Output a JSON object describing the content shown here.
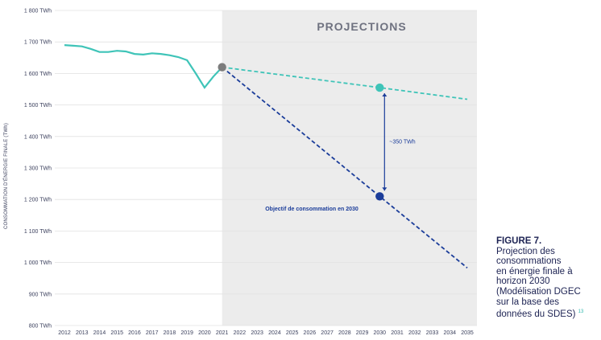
{
  "chart_data": {
    "type": "line",
    "projection_label": "PROJECTIONS",
    "ylabel": "CONSOMMATION D'ÉNERGIE FINALE (TWh)",
    "ylim": [
      800,
      1800
    ],
    "y_ticks": [
      "800 TWh",
      "900 TWh",
      "1 000 TWh",
      "1 100 TWh",
      "1 200 TWh",
      "1 300 TWh",
      "1 400 TWh",
      "1 500 TWh",
      "1 600 TWh",
      "1 700 TWh",
      "1 800 TWh"
    ],
    "y_tick_values": [
      800,
      900,
      1000,
      1100,
      1200,
      1300,
      1400,
      1500,
      1600,
      1700,
      1800
    ],
    "x_ticks": [
      "2012",
      "2013",
      "2014",
      "2015",
      "2016",
      "2017",
      "2018",
      "2019",
      "2020",
      "2021",
      "2022",
      "2023",
      "2024",
      "2025",
      "2026",
      "2027",
      "2028",
      "2029",
      "2030",
      "2031",
      "2032",
      "2033",
      "2034",
      "2035"
    ],
    "xlim": [
      2012,
      2035
    ],
    "projection_start": 2021,
    "grid": true,
    "series": [
      {
        "style": "solid",
        "color": "#3fc4b8",
        "points": [
          [
            2012,
            1690
          ],
          [
            2012.5,
            1688
          ],
          [
            2013,
            1686
          ],
          [
            2013.5,
            1678
          ],
          [
            2014,
            1668
          ],
          [
            2014.5,
            1668
          ],
          [
            2015,
            1672
          ],
          [
            2015.5,
            1670
          ],
          [
            2016,
            1662
          ],
          [
            2016.5,
            1660
          ],
          [
            2017,
            1664
          ],
          [
            2017.5,
            1662
          ],
          [
            2018,
            1658
          ],
          [
            2018.5,
            1652
          ],
          [
            2019,
            1642
          ],
          [
            2019.5,
            1600
          ],
          [
            2020,
            1555
          ],
          [
            2020.5,
            1590
          ],
          [
            2021,
            1620
          ]
        ]
      },
      {
        "style": "dashed",
        "color": "#3fc4b8",
        "points": [
          [
            2021,
            1620
          ],
          [
            2030,
            1555
          ],
          [
            2035,
            1518
          ]
        ]
      },
      {
        "style": "dashed",
        "color": "#1b3d9a",
        "points": [
          [
            2021,
            1620
          ],
          [
            2030,
            1210
          ],
          [
            2035,
            983
          ]
        ]
      }
    ],
    "markers": [
      {
        "x": 2021,
        "y": 1620,
        "color": "#7c7c7c"
      },
      {
        "x": 2030,
        "y": 1555,
        "color": "#3fc4b8"
      },
      {
        "x": 2030,
        "y": 1210,
        "color": "#1b3d9a"
      }
    ],
    "gap_annotation": {
      "x": 2030,
      "y_from": 1555,
      "y_to": 1210,
      "label": "~350 TWh"
    },
    "objective_label": "Objectif de consommation en 2030"
  },
  "caption": {
    "figure": "FIGURE 7.",
    "lines": [
      "Projection des",
      "consommations",
      "en énergie finale à",
      "horizon 2030",
      "(Modélisation DGEC",
      "sur la base des",
      "données du SDES)"
    ],
    "footnote": "13"
  }
}
